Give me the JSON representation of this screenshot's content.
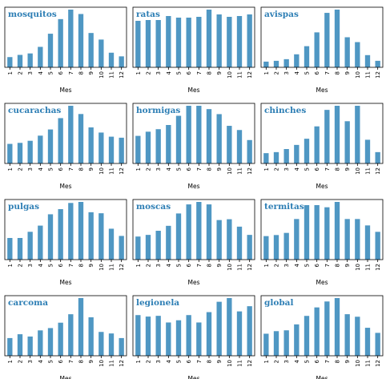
{
  "chart_data": [
    {
      "type": "bar",
      "title": "mosquitos",
      "xlabel": "Mes",
      "categories": [
        "1",
        "2",
        "3",
        "4",
        "5",
        "6",
        "7",
        "8",
        "9",
        "10",
        "11",
        "12"
      ],
      "values": [
        14,
        17,
        19,
        28,
        46,
        66,
        79,
        73,
        47,
        38,
        20,
        15
      ],
      "ylim": [
        0,
        79
      ],
      "color": "#4f97c3"
    },
    {
      "type": "bar",
      "title": "ratas",
      "xlabel": "Mes",
      "categories": [
        "1",
        "2",
        "3",
        "4",
        "5",
        "6",
        "7",
        "8",
        "9",
        "10",
        "11",
        "12"
      ],
      "values": [
        58,
        59,
        59,
        64,
        62,
        62,
        63,
        72,
        66,
        63,
        64,
        66
      ],
      "ylim": [
        0,
        72
      ],
      "color": "#4f97c3"
    },
    {
      "type": "bar",
      "title": "avispas",
      "xlabel": "Mes",
      "categories": [
        "1",
        "2",
        "3",
        "4",
        "5",
        "6",
        "7",
        "8",
        "9",
        "10",
        "11",
        "12"
      ],
      "values": [
        7,
        8,
        10,
        16,
        26,
        43,
        67,
        71,
        37,
        31,
        15,
        8
      ],
      "ylim": [
        0,
        71
      ],
      "color": "#4f97c3"
    },
    {
      "type": "bar",
      "title": "cucarachas",
      "xlabel": "Mes",
      "categories": [
        "1",
        "2",
        "3",
        "4",
        "5",
        "6",
        "7",
        "8",
        "9",
        "10",
        "11",
        "12"
      ],
      "values": [
        19,
        20,
        22,
        27,
        33,
        44,
        56,
        48,
        35,
        30,
        26,
        25
      ],
      "ylim": [
        0,
        56
      ],
      "color": "#4f97c3"
    },
    {
      "type": "bar",
      "title": "hormigas",
      "xlabel": "Mes",
      "categories": [
        "1",
        "2",
        "3",
        "4",
        "5",
        "6",
        "7",
        "8",
        "9",
        "10",
        "11",
        "12"
      ],
      "values": [
        33,
        38,
        41,
        46,
        57,
        69,
        69,
        65,
        59,
        45,
        40,
        28
      ],
      "ylim": [
        0,
        69
      ],
      "color": "#4f97c3"
    },
    {
      "type": "bar",
      "title": "chinches",
      "xlabel": "Mes",
      "categories": [
        "1",
        "2",
        "3",
        "4",
        "5",
        "6",
        "7",
        "8",
        "9",
        "10",
        "11",
        "12"
      ],
      "values": [
        10,
        11,
        14,
        18,
        24,
        36,
        52,
        56,
        41,
        56,
        23,
        11
      ],
      "ylim": [
        0,
        56
      ],
      "color": "#4f97c3"
    },
    {
      "type": "bar",
      "title": "pulgas",
      "xlabel": "Mes",
      "categories": [
        "1",
        "2",
        "3",
        "4",
        "5",
        "6",
        "7",
        "8",
        "9",
        "10",
        "11",
        "12"
      ],
      "values": [
        21,
        21,
        27,
        33,
        44,
        49,
        55,
        56,
        46,
        45,
        30,
        23
      ],
      "ylim": [
        0,
        56
      ],
      "color": "#4f97c3"
    },
    {
      "type": "bar",
      "title": "moscas",
      "xlabel": "Mes",
      "categories": [
        "1",
        "2",
        "3",
        "4",
        "5",
        "6",
        "7",
        "8",
        "9",
        "10",
        "11",
        "12"
      ],
      "values": [
        28,
        30,
        35,
        41,
        56,
        67,
        70,
        67,
        48,
        49,
        40,
        30
      ],
      "ylim": [
        0,
        70
      ],
      "color": "#4f97c3"
    },
    {
      "type": "bar",
      "title": "termitas",
      "xlabel": "Mes",
      "categories": [
        "1",
        "2",
        "3",
        "4",
        "5",
        "6",
        "7",
        "8",
        "9",
        "10",
        "11",
        "12"
      ],
      "values": [
        22,
        23,
        25,
        38,
        51,
        51,
        49,
        54,
        38,
        38,
        32,
        26
      ],
      "ylim": [
        0,
        54
      ],
      "color": "#4f97c3"
    },
    {
      "type": "bar",
      "title": "carcoma",
      "xlabel": "Mes",
      "categories": [
        "1",
        "2",
        "3",
        "4",
        "5",
        "6",
        "7",
        "8",
        "9",
        "10",
        "11",
        "12"
      ],
      "values": [
        23,
        28,
        25,
        33,
        36,
        43,
        54,
        75,
        50,
        31,
        29,
        23
      ],
      "ylim": [
        0,
        75
      ],
      "color": "#4f97c3"
    },
    {
      "type": "bar",
      "title": "legionela",
      "xlabel": "Mes",
      "categories": [
        "1",
        "2",
        "3",
        "4",
        "5",
        "6",
        "7",
        "8",
        "9",
        "10",
        "11",
        "12"
      ],
      "values": [
        55,
        53,
        54,
        45,
        48,
        55,
        45,
        59,
        73,
        78,
        60,
        67
      ],
      "ylim": [
        0,
        78
      ],
      "color": "#4f97c3"
    },
    {
      "type": "bar",
      "title": "global",
      "xlabel": "Mes",
      "categories": [
        "1",
        "2",
        "3",
        "4",
        "5",
        "6",
        "7",
        "8",
        "9",
        "10",
        "11",
        "12"
      ],
      "values": [
        26,
        29,
        30,
        37,
        47,
        57,
        64,
        68,
        49,
        46,
        33,
        27
      ],
      "ylim": [
        0,
        68
      ],
      "color": "#4f97c3"
    }
  ]
}
